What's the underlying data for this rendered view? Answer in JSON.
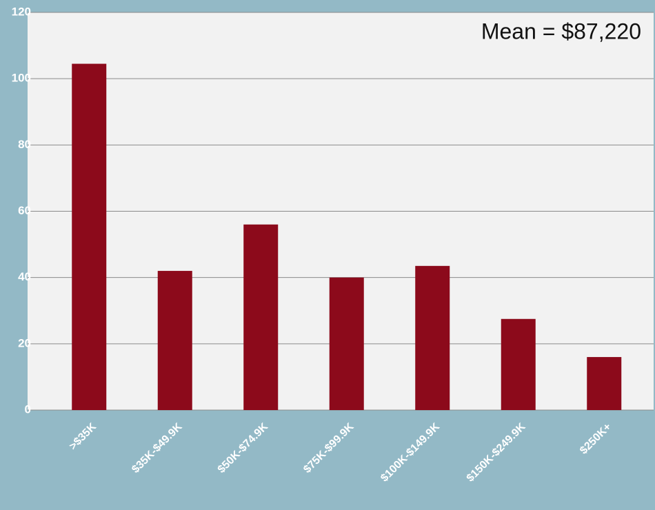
{
  "chart_data": {
    "type": "bar",
    "annotation": "Mean = $87,220",
    "categories": [
      ">$35K",
      "$35K-$49.9K",
      "$50K-$74.9K",
      "$75K-$99.9K",
      "$100K-$149.9K",
      "$150K-$249.9K",
      "$250K+"
    ],
    "values": [
      104.5,
      42,
      56,
      40,
      43.5,
      27.5,
      16
    ],
    "color": "#8c0a1b",
    "ylim": [
      0,
      120
    ],
    "yticks": [
      0,
      20,
      40,
      60,
      80,
      100,
      120
    ],
    "grid": true
  }
}
